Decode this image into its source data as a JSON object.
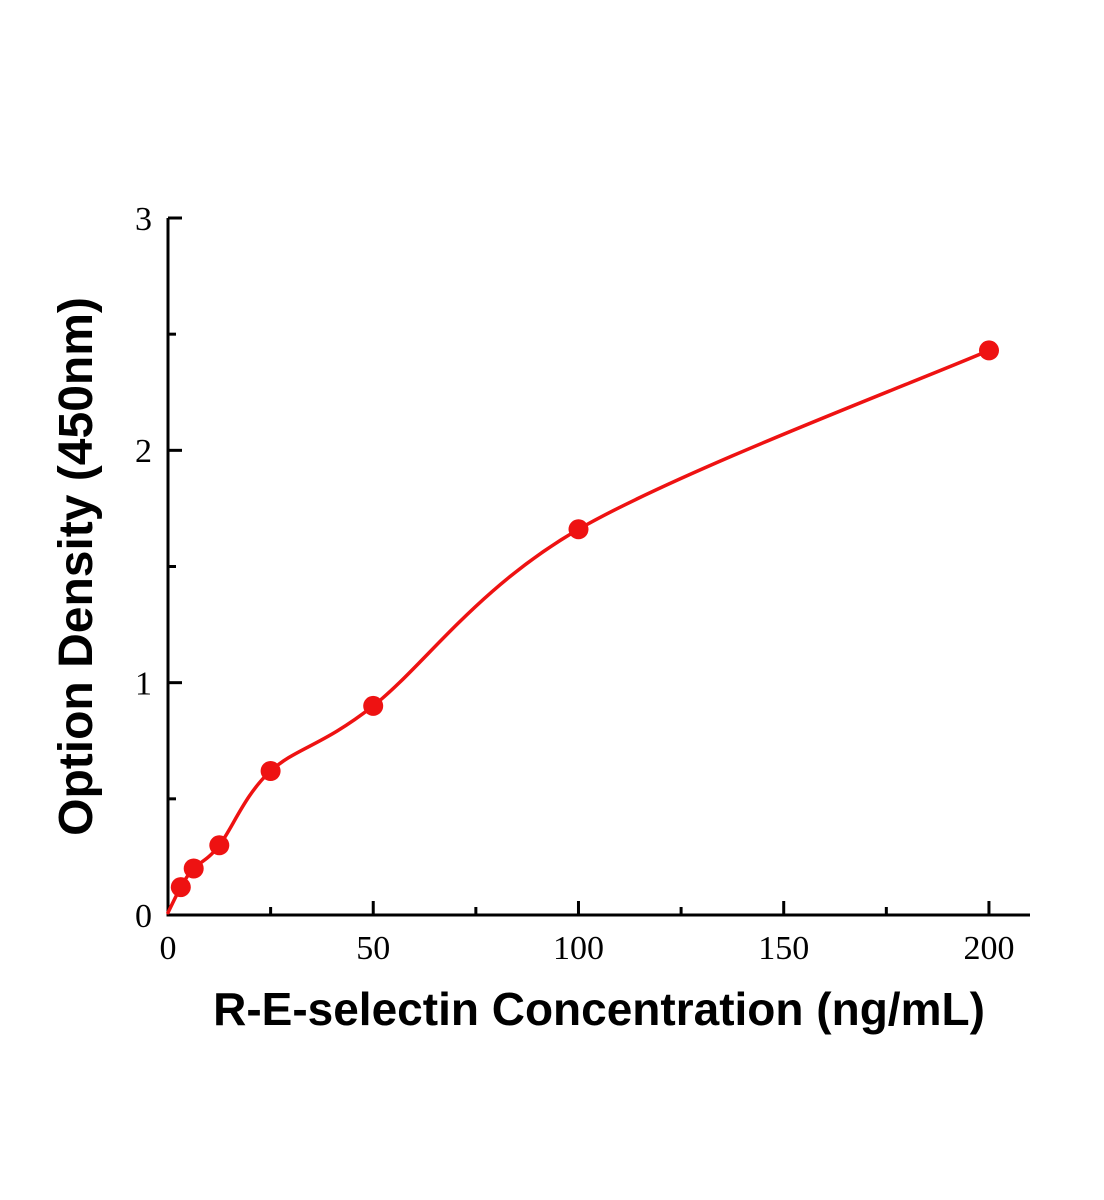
{
  "chart_data": {
    "type": "scatter",
    "title": "",
    "xlabel": "R-E-selectin Concentration (ng/mL)",
    "ylabel": "Option Density (450nm)",
    "x": [
      3.125,
      6.25,
      12.5,
      25,
      50,
      100,
      200
    ],
    "y": [
      0.12,
      0.2,
      0.3,
      0.62,
      0.9,
      1.66,
      2.43
    ],
    "curve_start": [
      0,
      0.01
    ],
    "xlim": [
      0,
      210
    ],
    "ylim": [
      0,
      3
    ],
    "x_ticks": [
      0,
      50,
      100,
      150,
      200
    ],
    "y_ticks": [
      0,
      1,
      2,
      3
    ],
    "x_minor_ticks": [
      25,
      75,
      125,
      175
    ],
    "y_minor_ticks": [
      0.5,
      1.5,
      2.5
    ],
    "grid": false,
    "legend": "none",
    "point_color": "#ee1212",
    "line_color": "#ee1212",
    "axis_color": "#000000"
  }
}
